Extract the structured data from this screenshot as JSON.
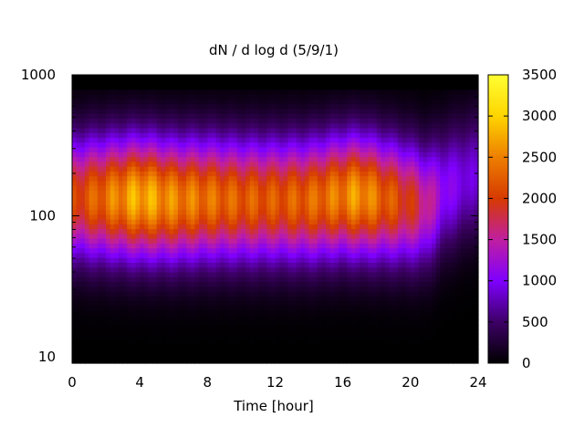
{
  "chart_data": {
    "type": "heatmap",
    "title": "dN / d log d (5/9/1)",
    "xlabel": "Time [hour]",
    "ylabel": "",
    "x_ticks": [
      "0",
      "4",
      "8",
      "12",
      "16",
      "20",
      "24"
    ],
    "y_ticks": [
      "10",
      "100",
      "1000"
    ],
    "y_scale": "log",
    "xlim": [
      0,
      24
    ],
    "ylim": [
      9,
      1000
    ],
    "colorbar": {
      "min": 0,
      "max": 3500,
      "ticks": [
        "0",
        "500",
        "1000",
        "1500",
        "2000",
        "2500",
        "3000",
        "3500"
      ],
      "palette": [
        "#000000",
        "#3d0066",
        "#7f00ff",
        "#c01fa0",
        "#d63a00",
        "#ee7f00",
        "#ffd500",
        "#ffff33"
      ]
    },
    "grid": false,
    "series": [
      {
        "hours": [
          0,
          2,
          4,
          6,
          8,
          10,
          12,
          14,
          16,
          17,
          18,
          20,
          21,
          22,
          24
        ],
        "peak_value": [
          2200,
          2600,
          3050,
          2750,
          2600,
          2450,
          2400,
          2500,
          2700,
          2900,
          2600,
          2100,
          1700,
          1200,
          900
        ],
        "peak_diameter": [
          135,
          135,
          135,
          130,
          132,
          130,
          130,
          130,
          140,
          140,
          135,
          125,
          120,
          150,
          200
        ]
      }
    ]
  }
}
